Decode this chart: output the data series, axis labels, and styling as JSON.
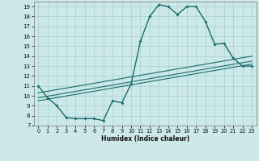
{
  "xlabel": "Humidex (Indice chaleur)",
  "bg_color": "#cde8e8",
  "grid_color": "#a8d4d4",
  "line_color": "#1a6b6b",
  "xlim": [
    -0.5,
    23.5
  ],
  "ylim": [
    7,
    19.5
  ],
  "xticks": [
    0,
    1,
    2,
    3,
    4,
    5,
    6,
    7,
    8,
    9,
    10,
    11,
    12,
    13,
    14,
    15,
    16,
    17,
    18,
    19,
    20,
    21,
    22,
    23
  ],
  "yticks": [
    7,
    8,
    9,
    10,
    11,
    12,
    13,
    14,
    15,
    16,
    17,
    18,
    19
  ],
  "series1_x": [
    0,
    1,
    2,
    3,
    4,
    5,
    6,
    7,
    8,
    9,
    10,
    11,
    12,
    13,
    14,
    15,
    16,
    17,
    18,
    19,
    20,
    21,
    22,
    23
  ],
  "series1_y": [
    11,
    9.8,
    9.0,
    7.8,
    7.7,
    7.7,
    7.7,
    7.5,
    9.5,
    9.3,
    11.2,
    15.5,
    18.0,
    19.2,
    19.0,
    18.2,
    19.0,
    19.0,
    17.5,
    15.2,
    15.3,
    13.8,
    13.0,
    13.0
  ],
  "series2_x": [
    0,
    23
  ],
  "series2_y": [
    9.5,
    13.2
  ],
  "series3_x": [
    0,
    23
  ],
  "series3_y": [
    9.8,
    13.5
  ],
  "series4_x": [
    0,
    23
  ],
  "series4_y": [
    10.3,
    14.0
  ]
}
